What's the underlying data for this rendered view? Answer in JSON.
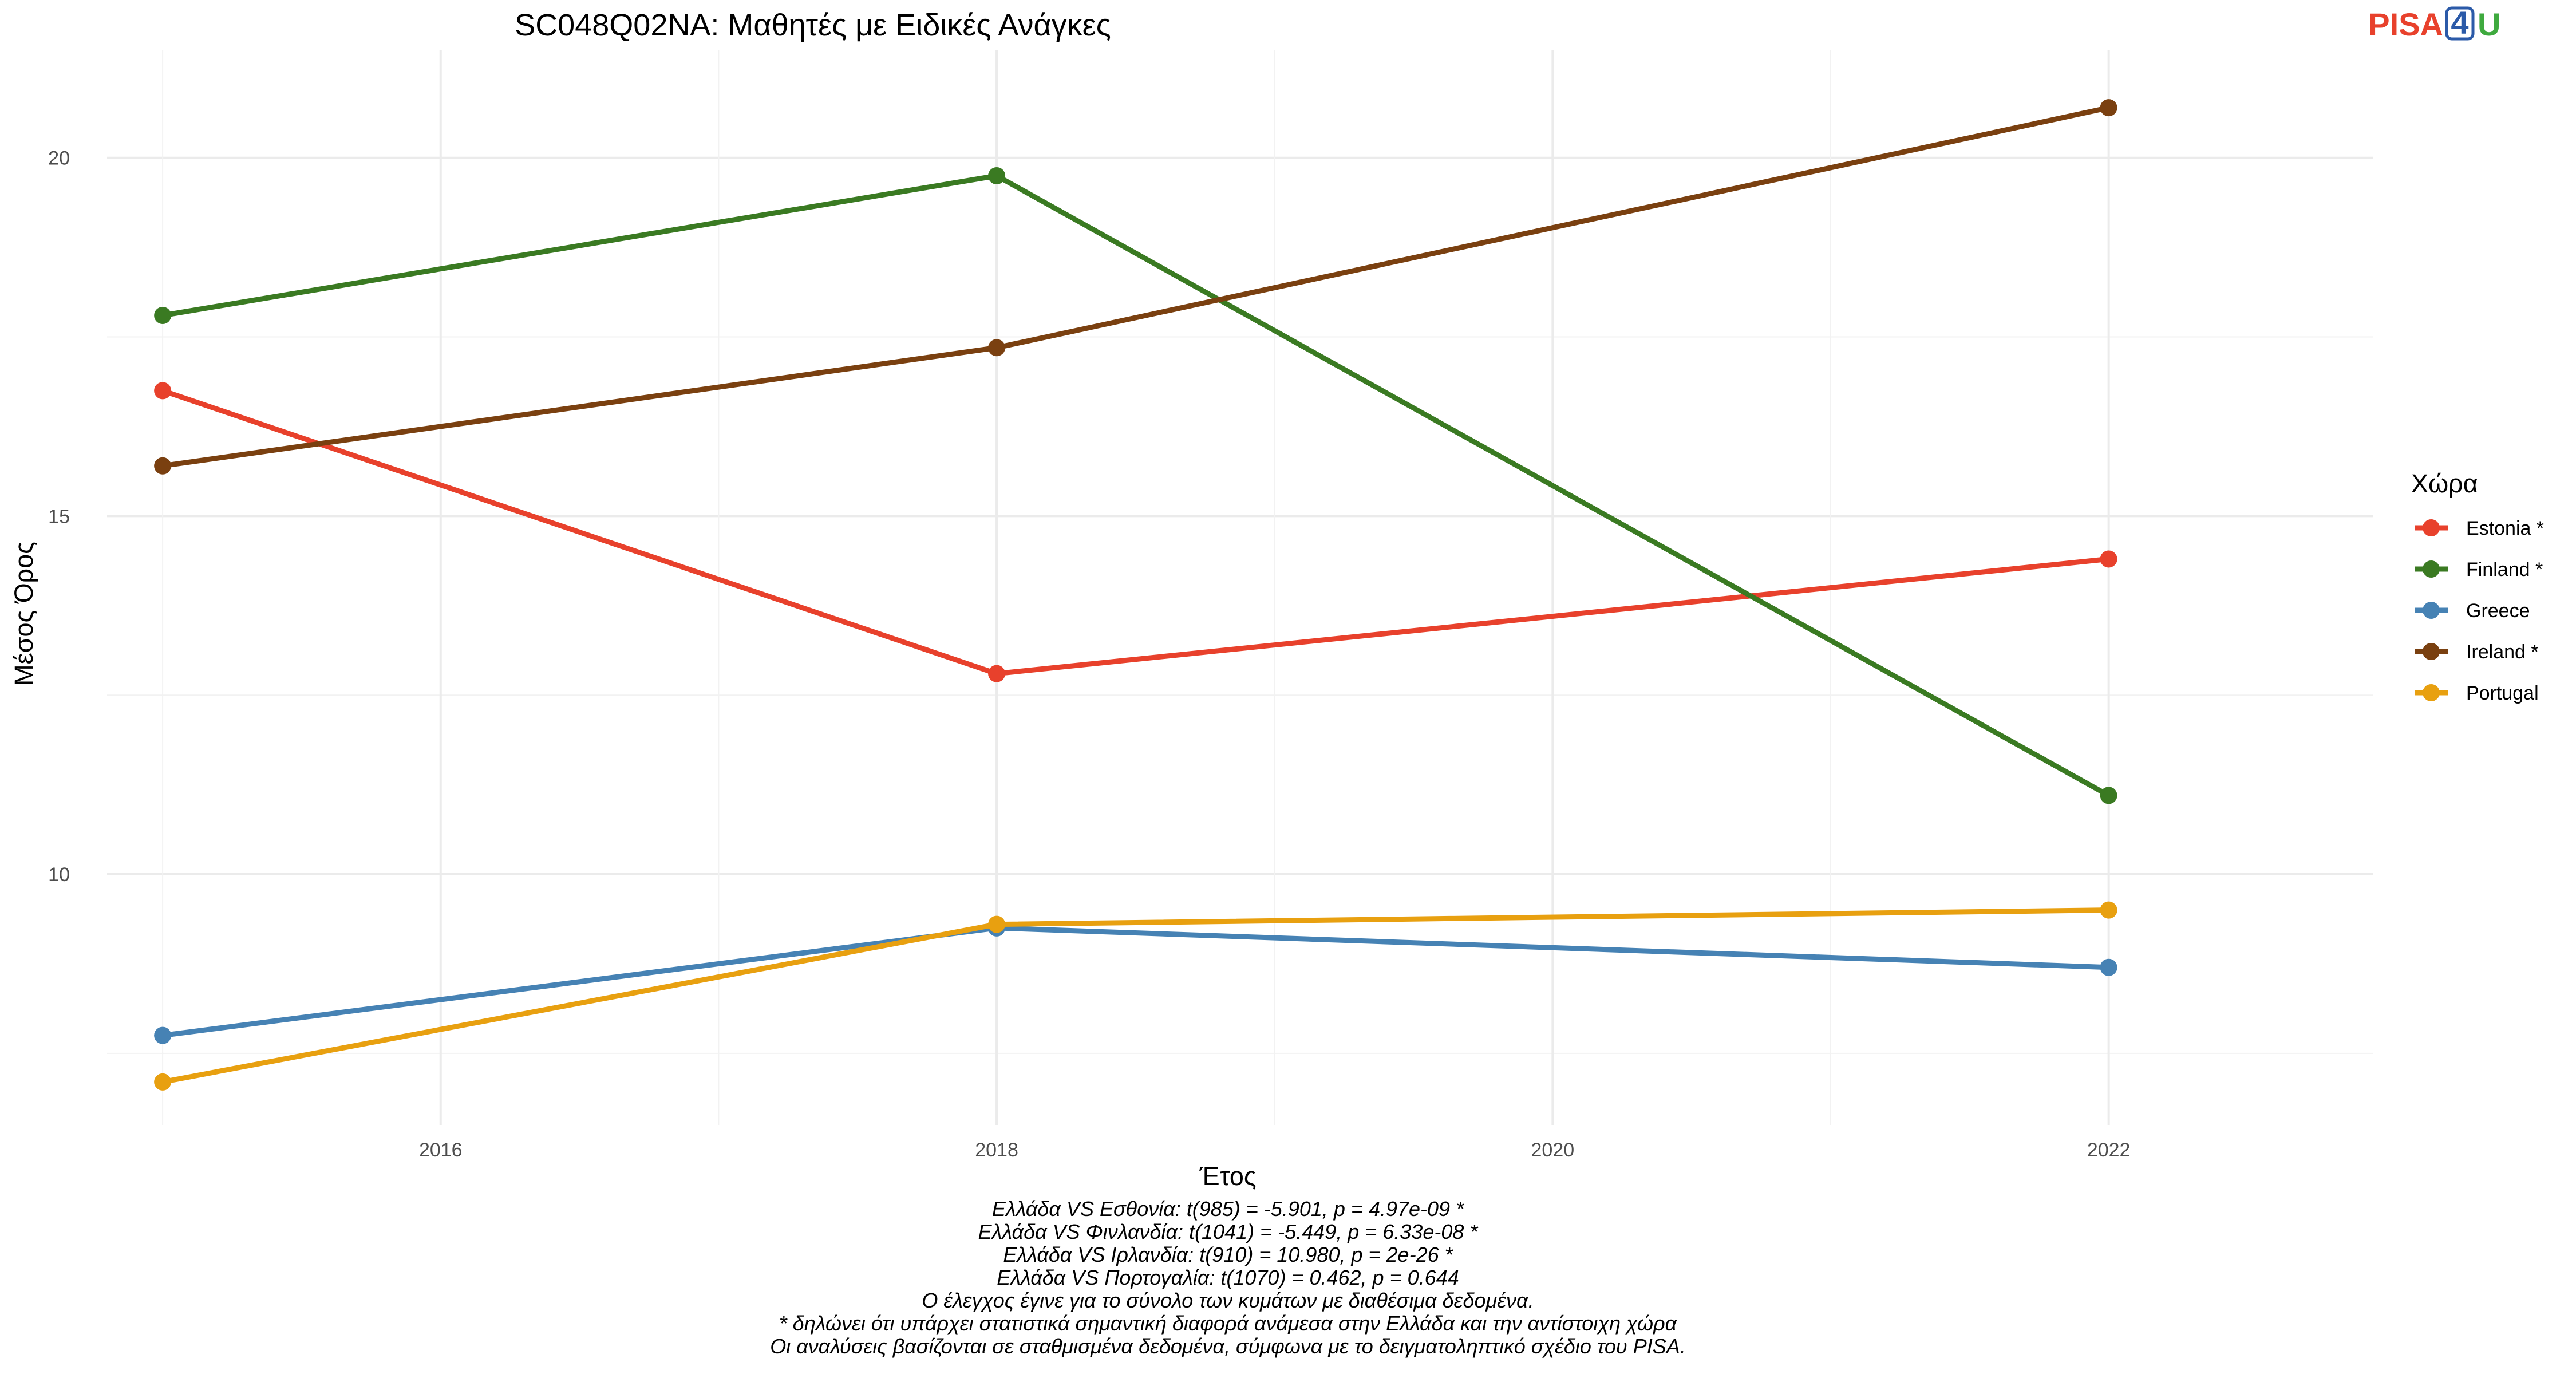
{
  "logo": {
    "part1": "PISA",
    "part2": "4",
    "part3": "U",
    "colors": {
      "part1": "#e8412c",
      "part2": "#2b5aa8",
      "part3": "#3faa3f"
    }
  },
  "caption": [
    "Ελλάδα VS Εσθονία: t(985) = -5.901, p = 4.97e-09 *",
    "Ελλάδα VS Φινλανδία: t(1041) = -5.449, p = 6.33e-08 *",
    "Ελλάδα VS Ιρλανδία: t(910) = 10.980, p = 2e-26 *",
    "Ελλάδα VS Πορτογαλία: t(1070) = 0.462, p = 0.644",
    "Ο έλεγχος έγινε για το σύνολο των κυμάτων με διαθέσιμα δεδομένα.",
    "* δηλώνει ότι υπάρχει στατιστικά σημαντική διαφορά ανάμεσα στην Ελλάδα και την αντίστοιχη χώρα",
    "Οι αναλύσεις βασίζονται σε σταθμισμένα δεδομένα, σύμφωνα με το δειγματοληπτικό σχέδιο του PISA."
  ],
  "chart_data": {
    "type": "line",
    "title": "SC048Q02NA: Μαθητές με Ειδικές Ανάγκες",
    "xlabel": "Έτος",
    "ylabel": "Μέσος Όρος",
    "x": [
      2015,
      2018,
      2022
    ],
    "xlim": [
      2014.8,
      2022.95
    ],
    "ylim": [
      6.5,
      21.5
    ],
    "xticks": [
      2016,
      2018,
      2020,
      2022
    ],
    "yticks": [
      10,
      15,
      20
    ],
    "grid": true,
    "legend_title": "Χώρα",
    "legend_position": "right",
    "series": [
      {
        "name": "Estonia *",
        "color": "#e8412c",
        "values": [
          16.75,
          12.8,
          14.4
        ]
      },
      {
        "name": "Finland *",
        "color": "#3a7a22",
        "values": [
          17.8,
          19.75,
          11.1
        ]
      },
      {
        "name": "Greece",
        "color": "#4682b4",
        "values": [
          7.75,
          9.25,
          8.7
        ]
      },
      {
        "name": "Ireland *",
        "color": "#7a4010",
        "values": [
          15.7,
          17.35,
          20.7
        ]
      },
      {
        "name": "Portugal",
        "color": "#e8a010",
        "values": [
          7.1,
          9.3,
          9.5
        ]
      }
    ]
  }
}
